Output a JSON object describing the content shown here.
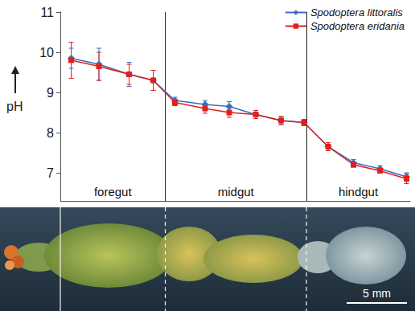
{
  "chart_data": {
    "type": "line",
    "y_label": "pH",
    "x": [
      0.9,
      3.2,
      5.7,
      7.7,
      9.5,
      12.0,
      14.0,
      16.2,
      18.3,
      20.2,
      22.2,
      24.3,
      26.5,
      28.7
    ],
    "series": [
      {
        "name": "Spodoptera littoralis",
        "color": "#3b6cc4",
        "marker": "diamond",
        "values": [
          9.85,
          9.7,
          9.45,
          9.3,
          8.8,
          8.7,
          8.65,
          8.45,
          8.3,
          8.25,
          7.65,
          7.25,
          7.1,
          6.9
        ],
        "errors": [
          0.25,
          0.4,
          0.3,
          0.25,
          0.08,
          0.1,
          0.12,
          0.05,
          0.1,
          0.08,
          0.1,
          0.08,
          0.08,
          0.1
        ]
      },
      {
        "name": "Spodoptera eridania",
        "color": "#e0201c",
        "marker": "square",
        "values": [
          9.8,
          9.65,
          9.45,
          9.3,
          8.75,
          8.6,
          8.5,
          8.45,
          8.3,
          8.25,
          7.65,
          7.2,
          7.05,
          6.85
        ],
        "errors": [
          0.45,
          0.35,
          0.25,
          0.25,
          0.08,
          0.12,
          0.12,
          0.1,
          0.1,
          0.06,
          0.1,
          0.06,
          0.06,
          0.12
        ]
      }
    ],
    "xlim": [
      0,
      29
    ],
    "ylim": [
      6.3,
      11
    ],
    "yticks": [
      7,
      8,
      9,
      10,
      11
    ],
    "tick_labels": "y",
    "grid": false,
    "legend": "top-right",
    "regions": [
      {
        "label": "foregut",
        "start": 0,
        "end": 8.7
      },
      {
        "label": "midgut",
        "start": 8.7,
        "end": 20.4
      },
      {
        "label": "hindgut",
        "start": 20.4,
        "end": 29
      }
    ],
    "scale_bar": {
      "label": "5 mm",
      "length": 5
    }
  }
}
